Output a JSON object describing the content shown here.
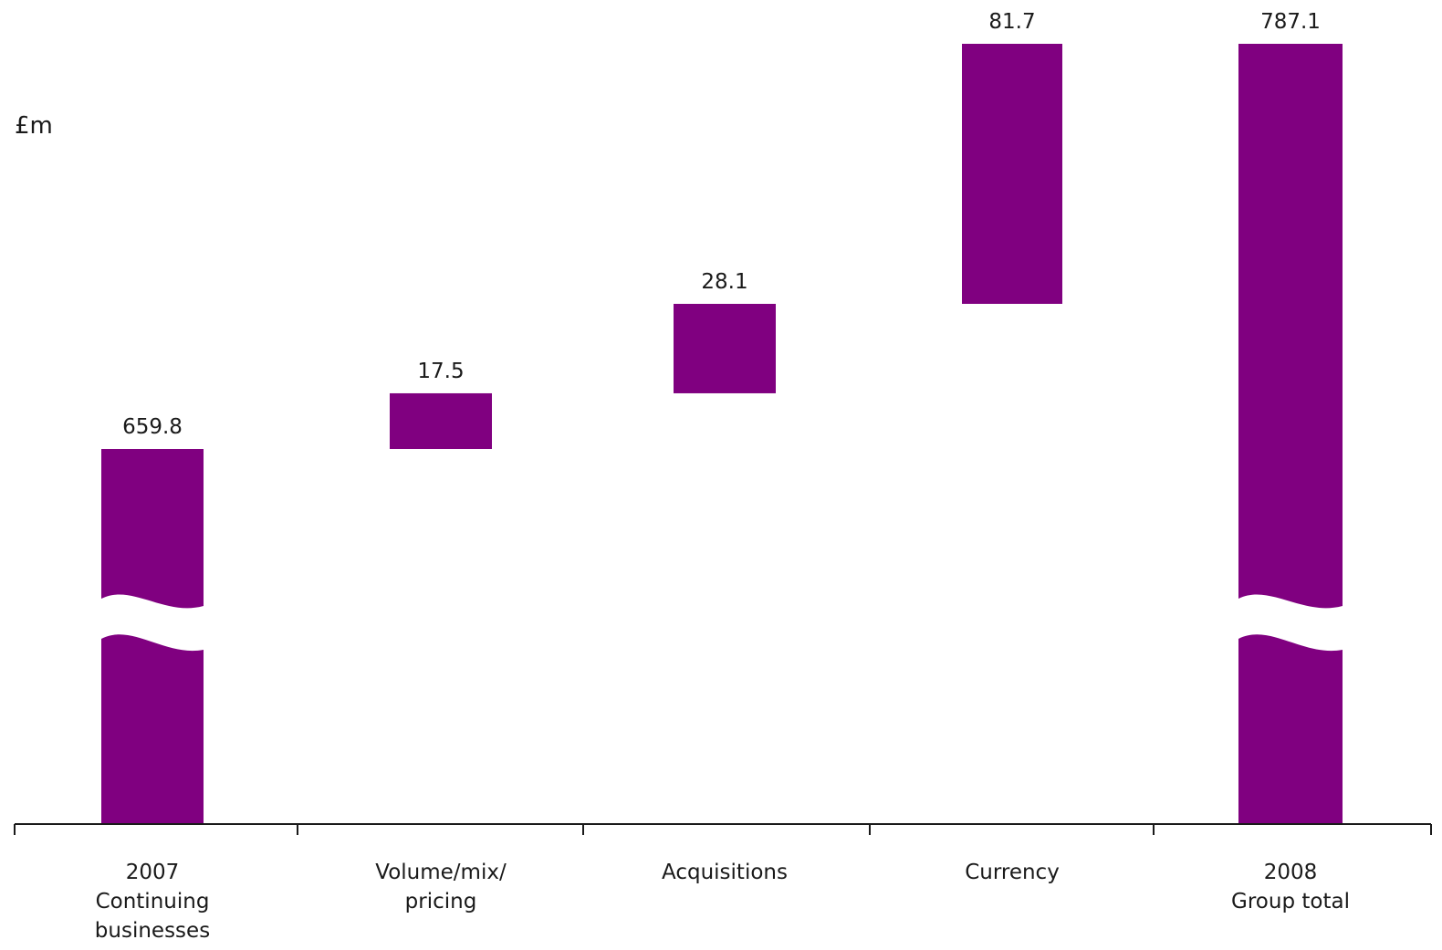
{
  "chart_data": {
    "type": "bar",
    "subtype": "waterfall",
    "unit_label": "£m",
    "categories": [
      [
        "2007",
        "Continuing",
        "businesses"
      ],
      [
        "Volume/mix/",
        "pricing"
      ],
      [
        "Acquisitions"
      ],
      [
        "Currency"
      ],
      [
        "2008",
        "Group total"
      ]
    ],
    "bars": [
      {
        "kind": "total",
        "start": 0,
        "end": 659.8,
        "label": "659.8",
        "axis_break": true
      },
      {
        "kind": "increment",
        "start": 659.8,
        "end": 677.3,
        "label": "17.5",
        "axis_break": false
      },
      {
        "kind": "increment",
        "start": 677.3,
        "end": 705.4,
        "label": "28.1",
        "axis_break": false
      },
      {
        "kind": "increment",
        "start": 705.4,
        "end": 787.1,
        "label": "81.7",
        "axis_break": false
      },
      {
        "kind": "total",
        "start": 0,
        "end": 787.1,
        "label": "787.1",
        "axis_break": true
      }
    ],
    "bar_color": "#800080",
    "grid": false,
    "legend": "none"
  }
}
